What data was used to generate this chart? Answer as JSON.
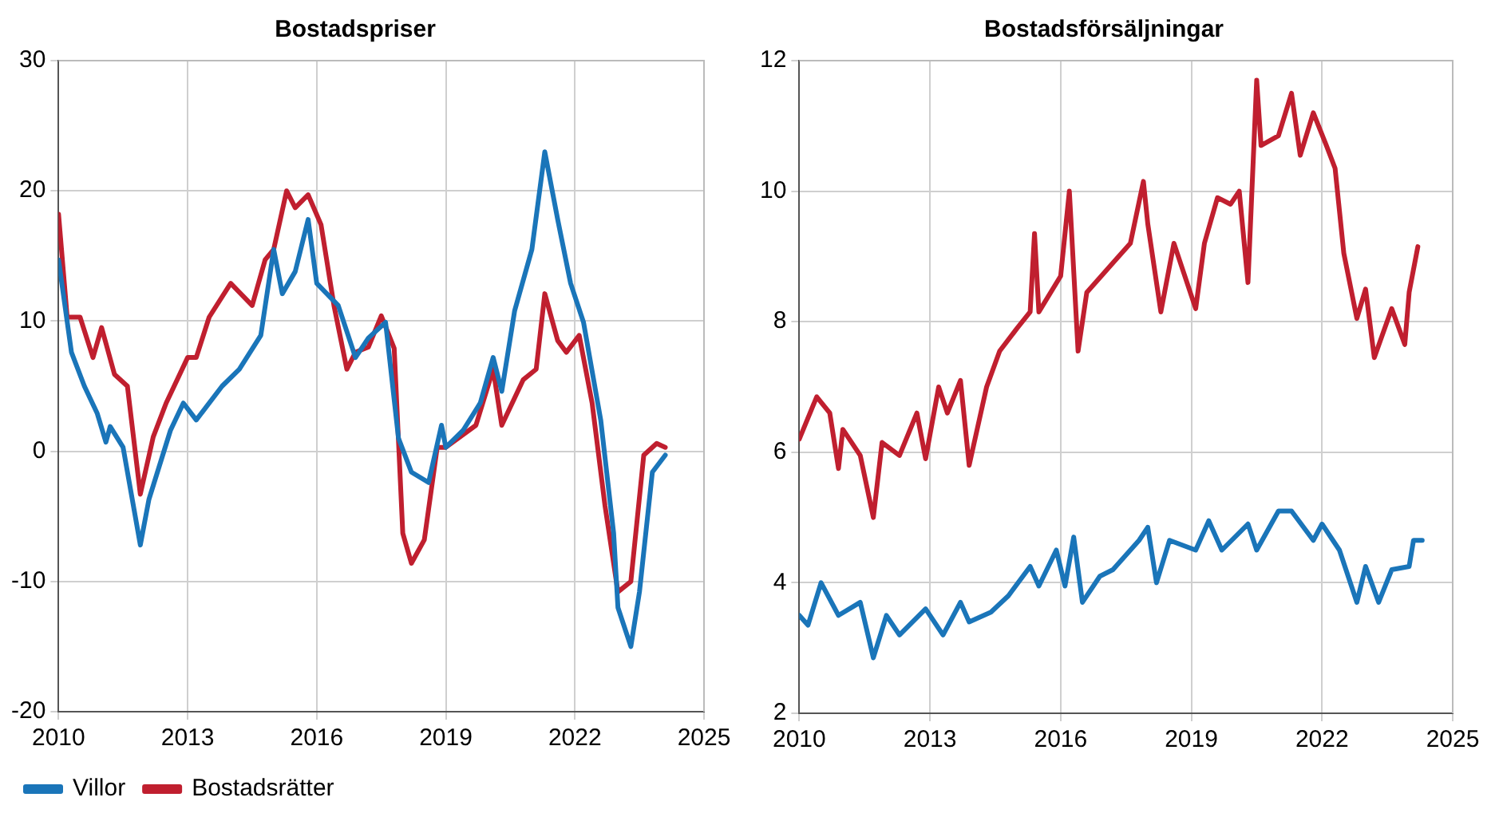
{
  "chart_data": [
    {
      "type": "line",
      "title": "Bostadspriser",
      "xlim": [
        2010,
        2025
      ],
      "xticks": [
        2010,
        2013,
        2016,
        2019,
        2022,
        2025
      ],
      "ylim": [
        -20,
        30
      ],
      "yticks": [
        -20,
        -10,
        0,
        10,
        20,
        30
      ],
      "grid": true,
      "legend": "bottom",
      "marker": "none",
      "line_style": "solid",
      "series": [
        {
          "name": "Villor",
          "color": "#1a75b9",
          "x": [
            2010.0,
            2010.3,
            2010.6,
            2010.9,
            2011.1,
            2011.2,
            2011.5,
            2011.9,
            2012.1,
            2012.6,
            2012.9,
            2013.2,
            2013.8,
            2014.2,
            2014.7,
            2015.0,
            2015.2,
            2015.5,
            2015.8,
            2016.0,
            2016.5,
            2016.9,
            2017.2,
            2017.6,
            2017.9,
            2018.2,
            2018.6,
            2018.9,
            2019.0,
            2019.4,
            2019.8,
            2020.1,
            2020.3,
            2020.6,
            2021.0,
            2021.3,
            2021.6,
            2021.9,
            2022.2,
            2022.6,
            2022.9,
            2023.0,
            2023.3,
            2023.5,
            2023.8,
            2024.1
          ],
          "values": [
            14.7,
            7.6,
            5,
            2.9,
            0.7,
            1.9,
            0.3,
            -7.2,
            -3.7,
            1.6,
            3.7,
            2.4,
            5,
            6.3,
            8.9,
            15.5,
            12.1,
            13.8,
            17.8,
            12.9,
            11.2,
            7.2,
            8.7,
            9.9,
            1,
            -1.6,
            -2.4,
            2,
            0.3,
            1.6,
            3.7,
            7.2,
            4.6,
            10.8,
            15.5,
            23,
            17.8,
            12.9,
            9.9,
            2.4,
            -6.3,
            -12,
            -15,
            -10.8,
            -1.6,
            -0.3
          ]
        },
        {
          "name": "Bostadsrätter",
          "color": "#c01f2f",
          "x": [
            2010.0,
            2010.2,
            2010.5,
            2010.8,
            2011.0,
            2011.3,
            2011.6,
            2011.9,
            2012.2,
            2012.5,
            2013.0,
            2013.2,
            2013.5,
            2014.0,
            2014.5,
            2014.8,
            2015.0,
            2015.3,
            2015.5,
            2015.8,
            2016.1,
            2016.4,
            2016.7,
            2016.9,
            2017.2,
            2017.5,
            2017.8,
            2018.0,
            2018.2,
            2018.5,
            2018.8,
            2019.0,
            2019.7,
            2020.1,
            2020.3,
            2020.8,
            2021.1,
            2021.3,
            2021.6,
            2021.8,
            2022.1,
            2022.4,
            2022.7,
            2023.0,
            2023.3,
            2023.6,
            2023.9,
            2024.1
          ],
          "values": [
            18.2,
            10.3,
            10.3,
            7.2,
            9.5,
            5.9,
            5,
            -3.3,
            1.1,
            3.7,
            7.2,
            7.2,
            10.3,
            12.9,
            11.2,
            14.7,
            15.5,
            20,
            18.7,
            19.7,
            17.4,
            11.2,
            6.3,
            7.6,
            8,
            10.4,
            7.9,
            -6.3,
            -8.6,
            -6.8,
            0.3,
            0.3,
            2,
            6.3,
            2,
            5.5,
            6.3,
            12.1,
            8.5,
            7.6,
            8.9,
            3.7,
            -4.2,
            -10.8,
            -10,
            -0.3,
            0.6,
            0.3
          ]
        }
      ]
    },
    {
      "type": "line",
      "title": "Bostadsförsäljningar",
      "xlim": [
        2010,
        2025
      ],
      "xticks": [
        2010,
        2013,
        2016,
        2019,
        2022,
        2025
      ],
      "ylim": [
        2,
        12
      ],
      "yticks": [
        2,
        4,
        6,
        8,
        10,
        12
      ],
      "grid": true,
      "marker": "none",
      "line_style": "solid",
      "series": [
        {
          "color": "#1a75b9",
          "x": [
            2010.0,
            2010.2,
            2010.5,
            2010.9,
            2011.4,
            2011.7,
            2012.0,
            2012.3,
            2012.9,
            2013.3,
            2013.7,
            2013.9,
            2014.4,
            2014.8,
            2015.3,
            2015.5,
            2015.9,
            2016.1,
            2016.3,
            2016.5,
            2016.9,
            2017.2,
            2017.6,
            2017.8,
            2018.0,
            2018.2,
            2018.5,
            2019.1,
            2019.4,
            2019.7,
            2020.3,
            2020.5,
            2021.0,
            2021.3,
            2021.8,
            2022.0,
            2022.4,
            2022.8,
            2023.0,
            2023.3,
            2023.6,
            2024.0,
            2024.1,
            2024.3
          ],
          "values": [
            3.5,
            3.35,
            4,
            3.5,
            3.7,
            2.85,
            3.5,
            3.2,
            3.6,
            3.2,
            3.7,
            3.4,
            3.55,
            3.8,
            4.25,
            3.95,
            4.5,
            3.95,
            4.7,
            3.7,
            4.1,
            4.2,
            4.5,
            4.65,
            4.85,
            4,
            4.65,
            4.5,
            4.95,
            4.5,
            4.9,
            4.5,
            5.1,
            5.1,
            4.65,
            4.9,
            4.5,
            3.7,
            4.25,
            3.7,
            4.2,
            4.25,
            4.65,
            4.65
          ]
        },
        {
          "color": "#c01f2f",
          "x": [
            2010.0,
            2010.4,
            2010.7,
            2010.9,
            2011.0,
            2011.4,
            2011.7,
            2011.9,
            2012.3,
            2012.7,
            2012.9,
            2013.2,
            2013.4,
            2013.7,
            2013.9,
            2014.3,
            2014.6,
            2015.0,
            2015.3,
            2015.4,
            2015.5,
            2016.0,
            2016.2,
            2016.4,
            2016.6,
            2017.2,
            2017.6,
            2017.9,
            2018.0,
            2018.3,
            2018.6,
            2019.1,
            2019.3,
            2019.6,
            2019.9,
            2020.1,
            2020.3,
            2020.5,
            2020.6,
            2021.0,
            2021.3,
            2021.5,
            2021.8,
            2022.1,
            2022.3,
            2022.5,
            2022.8,
            2023.0,
            2023.2,
            2023.6,
            2023.9,
            2024.0,
            2024.2
          ],
          "values": [
            6.2,
            6.85,
            6.6,
            5.75,
            6.35,
            5.95,
            5,
            6.15,
            5.95,
            6.6,
            5.9,
            7,
            6.6,
            7.1,
            5.8,
            7,
            7.55,
            7.9,
            8.15,
            9.35,
            8.15,
            8.7,
            10,
            7.55,
            8.45,
            8.9,
            9.2,
            10.15,
            9.5,
            8.15,
            9.2,
            8.2,
            9.2,
            9.9,
            9.8,
            10,
            8.6,
            11.7,
            10.7,
            10.85,
            11.5,
            10.55,
            11.2,
            10.7,
            10.35,
            9.05,
            8.05,
            8.5,
            7.45,
            8.2,
            7.65,
            8.45,
            9.15
          ]
        }
      ]
    }
  ]
}
